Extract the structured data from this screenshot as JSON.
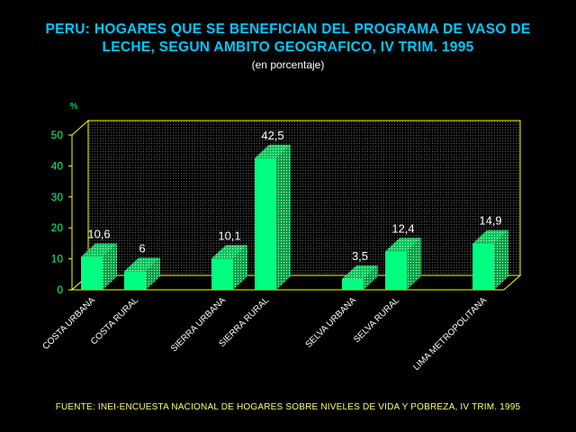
{
  "title_line1": "PERU: HOGARES QUE SE BENEFICIAN DEL PROGRAMA DE VASO DE",
  "title_line2": "LECHE, SEGUN AMBITO GEOGRAFICO, IV TRIM. 1995",
  "subtitle": "(en porcentaje)",
  "source": "FUENTE: INEI-ENCUESTA NACIONAL DE HOGARES SOBRE NIVELES DE VIDA Y POBREZA, IV TRIM. 1995",
  "chart_data": {
    "type": "bar",
    "ylabel": "%",
    "ylim": [
      0,
      50
    ],
    "yticks": [
      "0",
      "10",
      "20",
      "30",
      "40",
      "50"
    ],
    "categories": [
      "COSTA URBANA",
      "COSTA RURAL",
      "SIERRA URBANA",
      "SIERRA RURAL",
      "SELVA URBANA",
      "SELVA RURAL",
      "LIMA METROPOLITANA"
    ],
    "values": [
      10.6,
      6,
      10.1,
      42.5,
      3.5,
      12.4,
      14.9
    ],
    "value_labels": [
      "10,6",
      "6",
      "10,1",
      "42,5",
      "3,5",
      "12,4",
      "14,9"
    ],
    "colors": {
      "bar_front": "#00ff80",
      "bar_side": "#00a04a",
      "frame": "#ffff00",
      "axis_text": "#00ff80",
      "title": "#00c8ff",
      "source": "#ffff66"
    }
  }
}
